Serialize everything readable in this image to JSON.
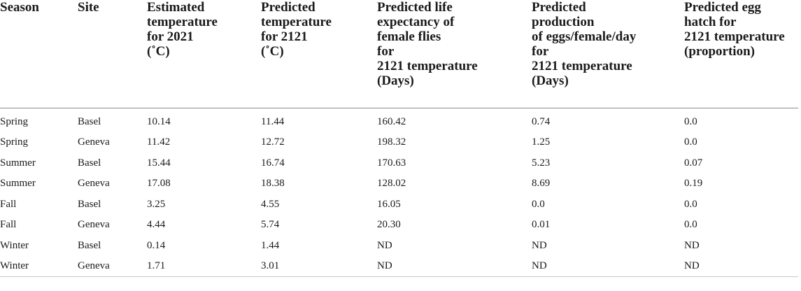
{
  "table": {
    "headers": [
      "Season",
      "Site",
      "Estimated\ntemperature\nfor 2021\n(˚C)",
      "Predicted\ntemperature\nfor 2121\n(˚C)",
      "Predicted life\nexpectancy of\nfemale flies\nfor\n2121 temperature\n(Days)",
      "Predicted\nproduction\nof eggs/female/day\nfor\n2121 temperature\n(Days)",
      "Predicted egg\nhatch for\n2121 temperature\n(proportion)"
    ],
    "rows": [
      [
        "Spring",
        "Basel",
        "10.14",
        "11.44",
        "160.42",
        "0.74",
        "0.0"
      ],
      [
        "Spring",
        "Geneva",
        "11.42",
        "12.72",
        "198.32",
        "1.25",
        "0.0"
      ],
      [
        "Summer",
        "Basel",
        "15.44",
        "16.74",
        "170.63",
        "5.23",
        "0.07"
      ],
      [
        "Summer",
        "Geneva",
        "17.08",
        "18.38",
        "128.02",
        "8.69",
        "0.19"
      ],
      [
        "Fall",
        "Basel",
        "3.25",
        "4.55",
        "16.05",
        "0.0",
        "0.0"
      ],
      [
        "Fall",
        "Geneva",
        "4.44",
        "5.74",
        "20.30",
        "0.01",
        "0.0"
      ],
      [
        "Winter",
        "Basel",
        "0.14",
        "1.44",
        "ND",
        "ND",
        "ND"
      ],
      [
        "Winter",
        "Geneva",
        "1.71",
        "3.01",
        "ND",
        "ND",
        "ND"
      ]
    ]
  }
}
